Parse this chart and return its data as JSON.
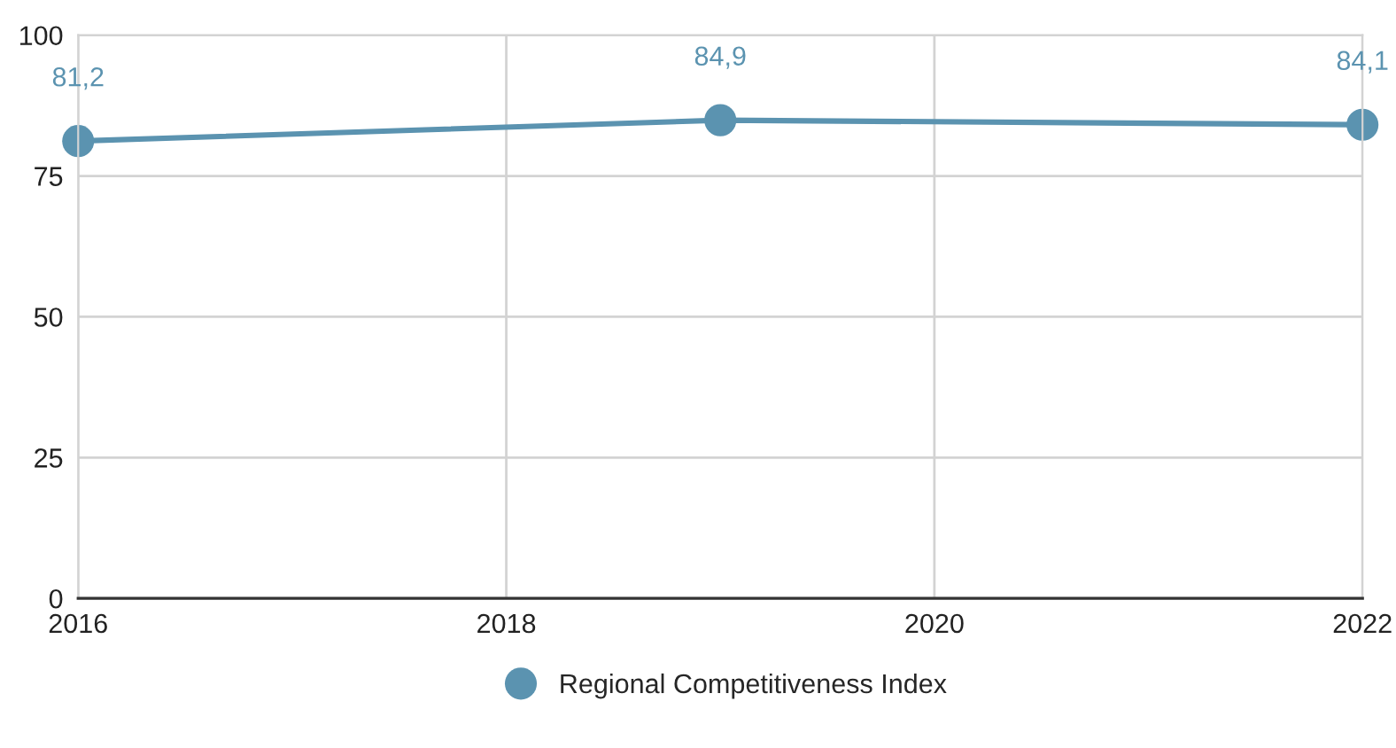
{
  "chart_data": {
    "type": "line",
    "x": [
      2016,
      2019,
      2022
    ],
    "series": [
      {
        "name": "Regional Competitiveness Index",
        "color": "#5b93b0",
        "values": [
          81.2,
          84.9,
          84.1
        ],
        "value_labels": [
          "81,2",
          "84,9",
          "84,1"
        ]
      }
    ],
    "xlim": [
      2016,
      2022
    ],
    "xticks": [
      2016,
      2018,
      2020,
      2022
    ],
    "ylim": [
      0,
      100
    ],
    "yticks": [
      0,
      25,
      50,
      75,
      100
    ],
    "grid": true,
    "legend": "bottom",
    "marker": "circle",
    "line_style": "solid"
  }
}
